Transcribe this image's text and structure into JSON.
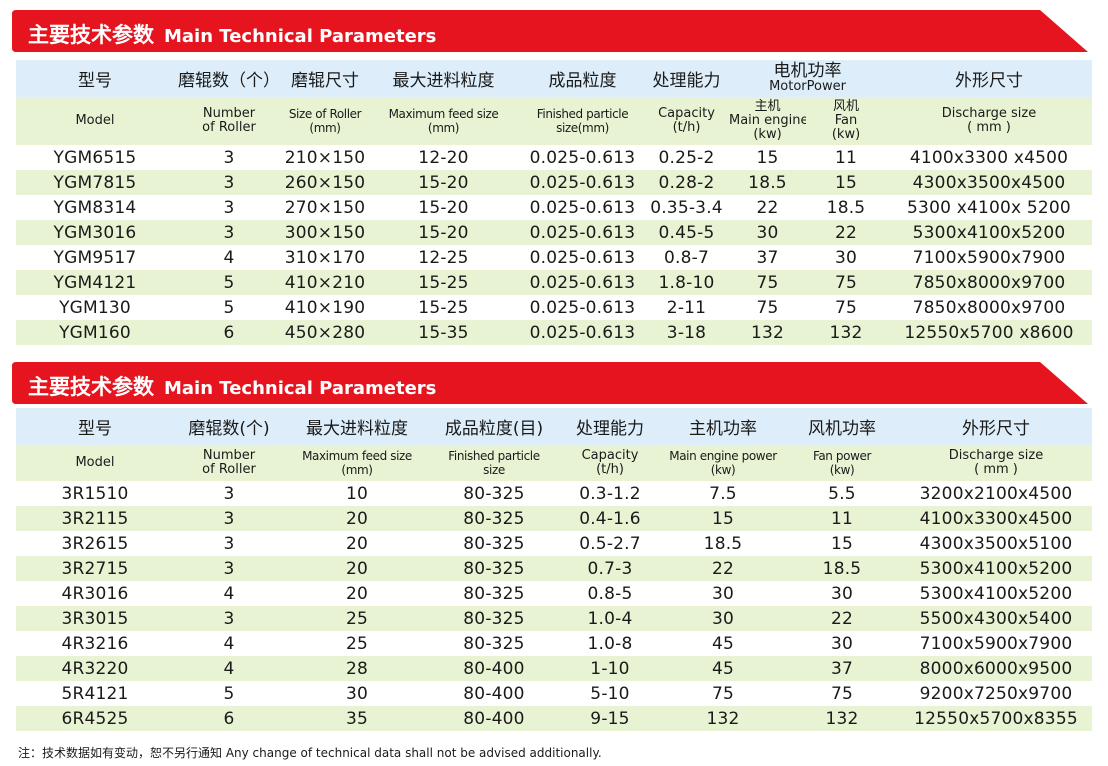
{
  "brand_colors": {
    "banner_red": "#e5141e",
    "header_blue": "#ddeefa",
    "row_green": "#e8f3d3"
  },
  "table1": {
    "banner_zh": "主要技术参数",
    "banner_en": "Main Technical Parameters",
    "header_zh": [
      "型号",
      "磨辊数（个）",
      "磨辊尺寸",
      "最大进料粒度",
      "成品粒度",
      "处理能力",
      "电机功率",
      "外形尺寸"
    ],
    "motor_power_en": "MotorPower",
    "header_en": {
      "model": "Model",
      "rollers": [
        "Number",
        "of Roller"
      ],
      "roller_size": [
        "Size of Roller",
        "(mm)"
      ],
      "feed": [
        "Maximum feed size",
        "(mm)"
      ],
      "finished": [
        "Finished particle",
        "size(mm)"
      ],
      "capacity": [
        "Capacity",
        "(t/h)"
      ],
      "main": [
        "主机",
        "Main engine",
        "(kw)"
      ],
      "fan": [
        "风机",
        "Fan",
        "(kw)"
      ],
      "discharge": [
        "Discharge size",
        "( mm )"
      ]
    },
    "rows": [
      [
        "YGM6515",
        "3",
        "210×150",
        "12-20",
        "0.025-0.613",
        "0.25-2",
        "15",
        "11",
        "4100x3300 x4500"
      ],
      [
        "YGM7815",
        "3",
        "260×150",
        "15-20",
        "0.025-0.613",
        "0.28-2",
        "18.5",
        "15",
        "4300x3500x4500"
      ],
      [
        "YGM8314",
        "3",
        "270×150",
        "15-20",
        "0.025-0.613",
        "0.35-3.4",
        "22",
        "18.5",
        "5300 x4100x 5200"
      ],
      [
        "YGM3016",
        "3",
        "300×150",
        "15-20",
        "0.025-0.613",
        "0.45-5",
        "30",
        "22",
        "5300x4100x5200"
      ],
      [
        "YGM9517",
        "4",
        "310×170",
        "12-25",
        "0.025-0.613",
        "0.8-7",
        "37",
        "30",
        "7100x5900x7900"
      ],
      [
        "YGM4121",
        "5",
        "410×210",
        "15-25",
        "0.025-0.613",
        "1.8-10",
        "75",
        "75",
        "7850x8000x9700"
      ],
      [
        "YGM130",
        "5",
        "410×190",
        "15-25",
        "0.025-0.613",
        "2-11",
        "75",
        "75",
        "7850x8000x9700"
      ],
      [
        "YGM160",
        "6",
        "450×280",
        "15-35",
        "0.025-0.613",
        "3-18",
        "132",
        "132",
        "12550x5700 x8600"
      ]
    ]
  },
  "table2": {
    "banner_zh": "主要技术参数",
    "banner_en": "Main Technical Parameters",
    "header_zh": [
      "型号",
      "磨辊数(个)",
      "最大进料粒度",
      "成品粒度(目)",
      "处理能力",
      "主机功率",
      "风机功率",
      "外形尺寸"
    ],
    "header_en": {
      "model": "Model",
      "rollers": [
        "Number",
        "of Roller"
      ],
      "feed": [
        "Maximum feed size",
        "(mm)"
      ],
      "finished": [
        "Finished particle",
        "size"
      ],
      "capacity": [
        "Capacity",
        "(t/h)"
      ],
      "main": [
        "Main engine power",
        "(kw)"
      ],
      "fan": [
        "Fan power",
        "(kw)"
      ],
      "discharge": [
        "Discharge size",
        "( mm )"
      ]
    },
    "rows": [
      [
        "3R1510",
        "3",
        "10",
        "80-325",
        "0.3-1.2",
        "7.5",
        "5.5",
        "3200x2100x4500"
      ],
      [
        "3R2115",
        "3",
        "20",
        "80-325",
        "0.4-1.6",
        "15",
        "11",
        "4100x3300x4500"
      ],
      [
        "3R2615",
        "3",
        "20",
        "80-325",
        "0.5-2.7",
        "18.5",
        "15",
        "4300x3500x5100"
      ],
      [
        "3R2715",
        "3",
        "20",
        "80-325",
        "0.7-3",
        "22",
        "18.5",
        "5300x4100x5200"
      ],
      [
        "4R3016",
        "4",
        "20",
        "80-325",
        "0.8-5",
        "30",
        "30",
        "5300x4100x5200"
      ],
      [
        "3R3015",
        "3",
        "25",
        "80-325",
        "1.0-4",
        "30",
        "22",
        "5500x4300x5400"
      ],
      [
        "4R3216",
        "4",
        "25",
        "80-325",
        "1.0-8",
        "45",
        "30",
        "7100x5900x7900"
      ],
      [
        "4R3220",
        "4",
        "28",
        "80-400",
        "1-10",
        "45",
        "37",
        "8000x6000x9500"
      ],
      [
        "5R4121",
        "5",
        "30",
        "80-400",
        "5-10",
        "75",
        "75",
        "9200x7250x9700"
      ],
      [
        "6R4525",
        "6",
        "35",
        "80-400",
        "9-15",
        "132",
        "132",
        "12550x5700x8355"
      ]
    ]
  },
  "footnote": "注：技术数据如有变动，恕不另行通知 Any change of technical data shall not be advised additionally."
}
